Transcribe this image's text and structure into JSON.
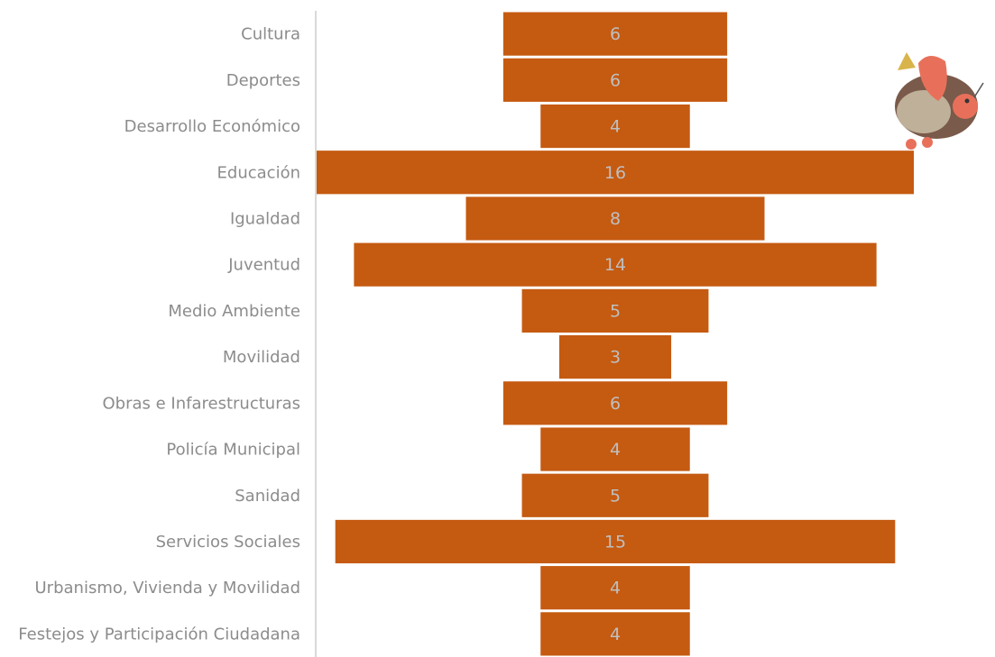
{
  "chart_data": {
    "type": "funnel",
    "categories": [
      "Cultura",
      "Deportes",
      "Desarrollo Económico",
      "Educación",
      "Igualdad",
      "Juventud",
      "Medio Ambiente",
      "Movilidad",
      "Obras e Infarestructuras",
      "Policía Municipal",
      "Sanidad",
      "Servicios Sociales",
      "Urbanismo, Vivienda y Movilidad",
      "Festejos y Participación Ciudadana"
    ],
    "values": [
      6,
      6,
      4,
      16,
      8,
      14,
      5,
      3,
      6,
      4,
      5,
      15,
      4,
      4
    ],
    "color": "#c55a11"
  }
}
